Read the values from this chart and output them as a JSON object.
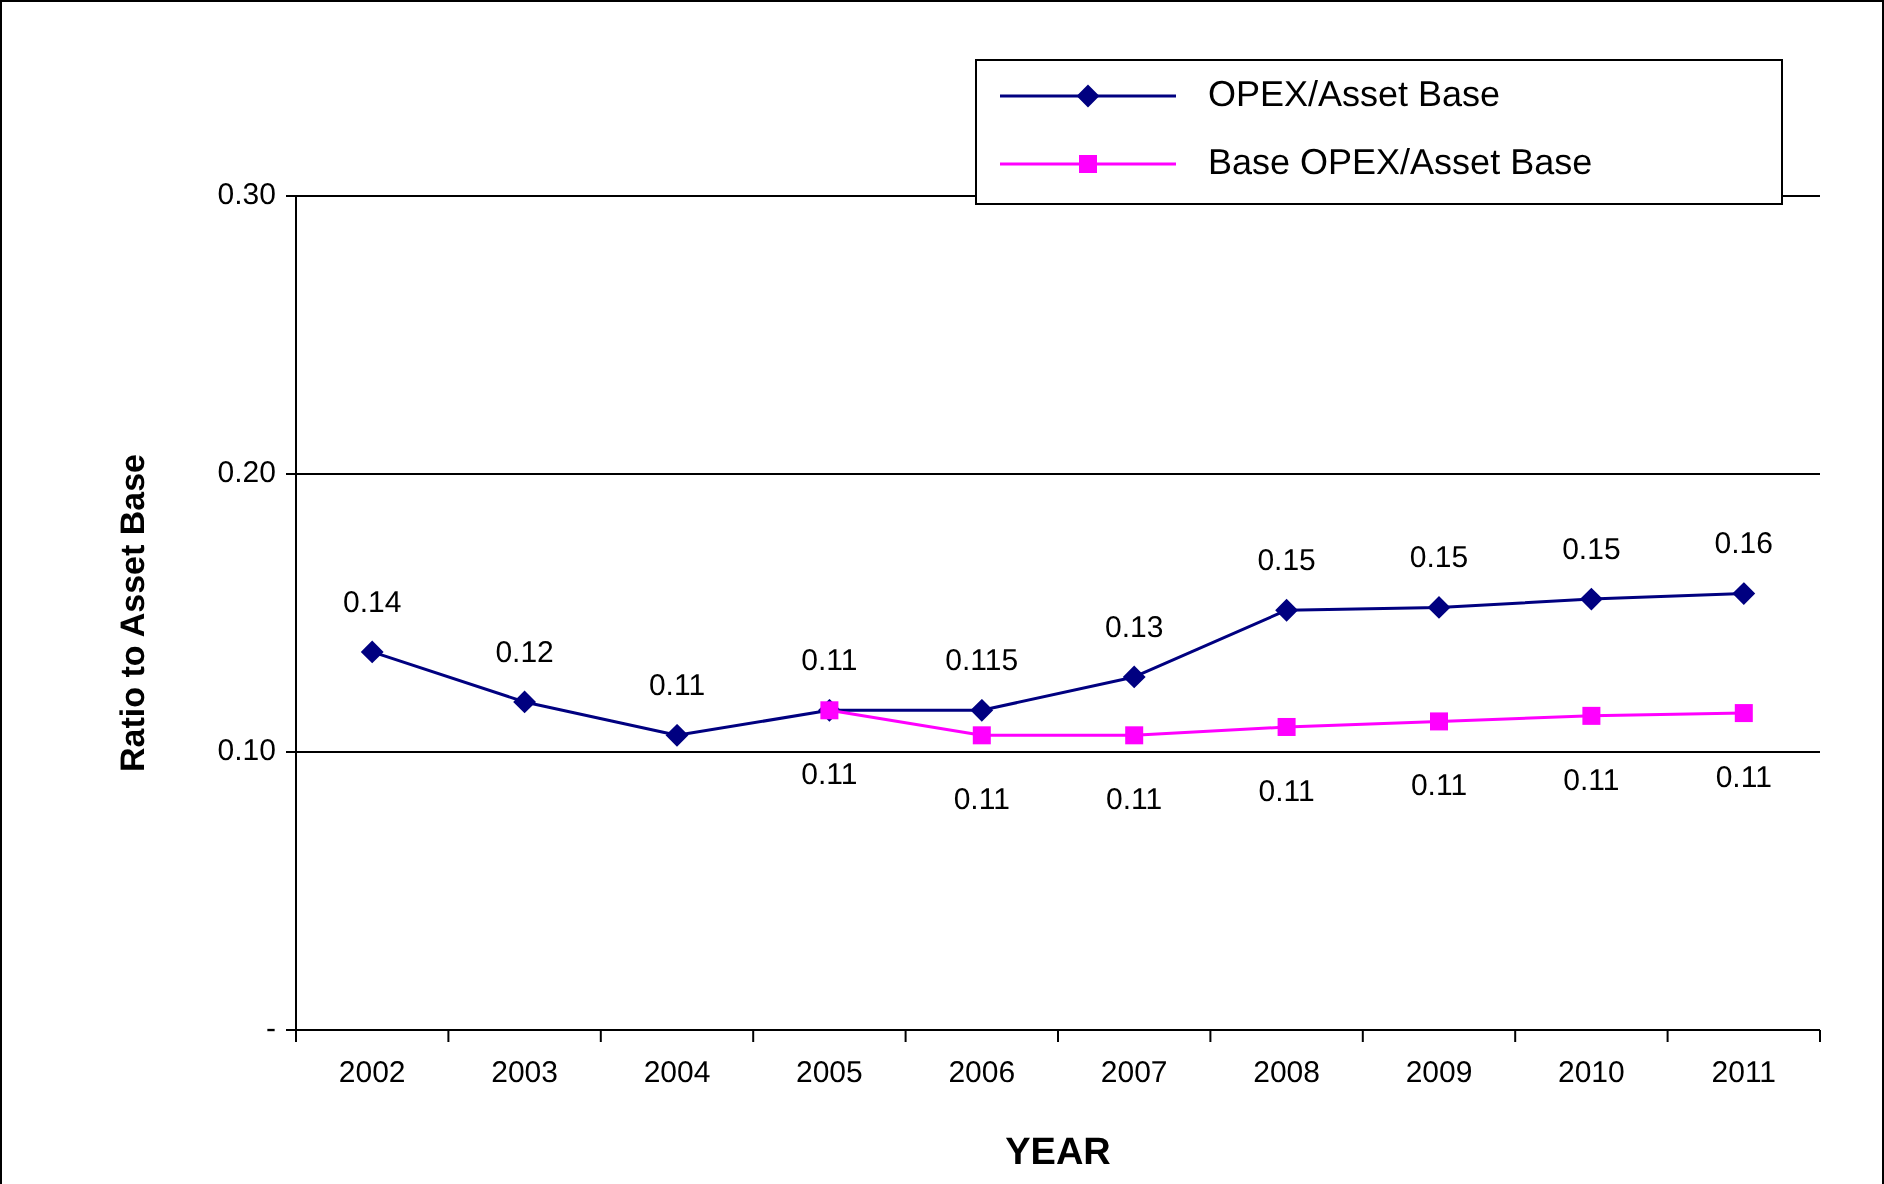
{
  "chart_data": {
    "type": "line",
    "xlabel": "YEAR",
    "ylabel": "Ratio to Asset Base",
    "categories": [
      "2002",
      "2003",
      "2004",
      "2005",
      "2006",
      "2007",
      "2008",
      "2009",
      "2010",
      "2011"
    ],
    "ylim": [
      0,
      0.3
    ],
    "yticks": [
      {
        "value": 0,
        "label": "-"
      },
      {
        "value": 0.1,
        "label": "0.10"
      },
      {
        "value": 0.2,
        "label": "0.20"
      },
      {
        "value": 0.3,
        "label": "0.30"
      }
    ],
    "grid": "y",
    "legend": "top right",
    "series": [
      {
        "name": "OPEX/Asset Base",
        "color": "#000080",
        "marker": "diamond",
        "values": [
          0.136,
          0.118,
          0.106,
          0.115,
          0.115,
          0.127,
          0.151,
          0.152,
          0.155,
          0.157
        ],
        "value_labels": [
          "0.14",
          "0.12",
          "0.11",
          "0.11",
          "0.115",
          "0.13",
          "0.15",
          "0.15",
          "0.15",
          "0.16"
        ]
      },
      {
        "name": "Base OPEX/Asset Base",
        "color": "#ff00ff",
        "marker": "square",
        "values": [
          null,
          null,
          null,
          0.115,
          0.106,
          0.106,
          0.109,
          0.111,
          0.113,
          0.114
        ],
        "value_labels": [
          null,
          null,
          null,
          "0.11",
          "0.11",
          "0.11",
          "0.11",
          "0.11",
          "0.11",
          "0.11"
        ]
      }
    ]
  }
}
